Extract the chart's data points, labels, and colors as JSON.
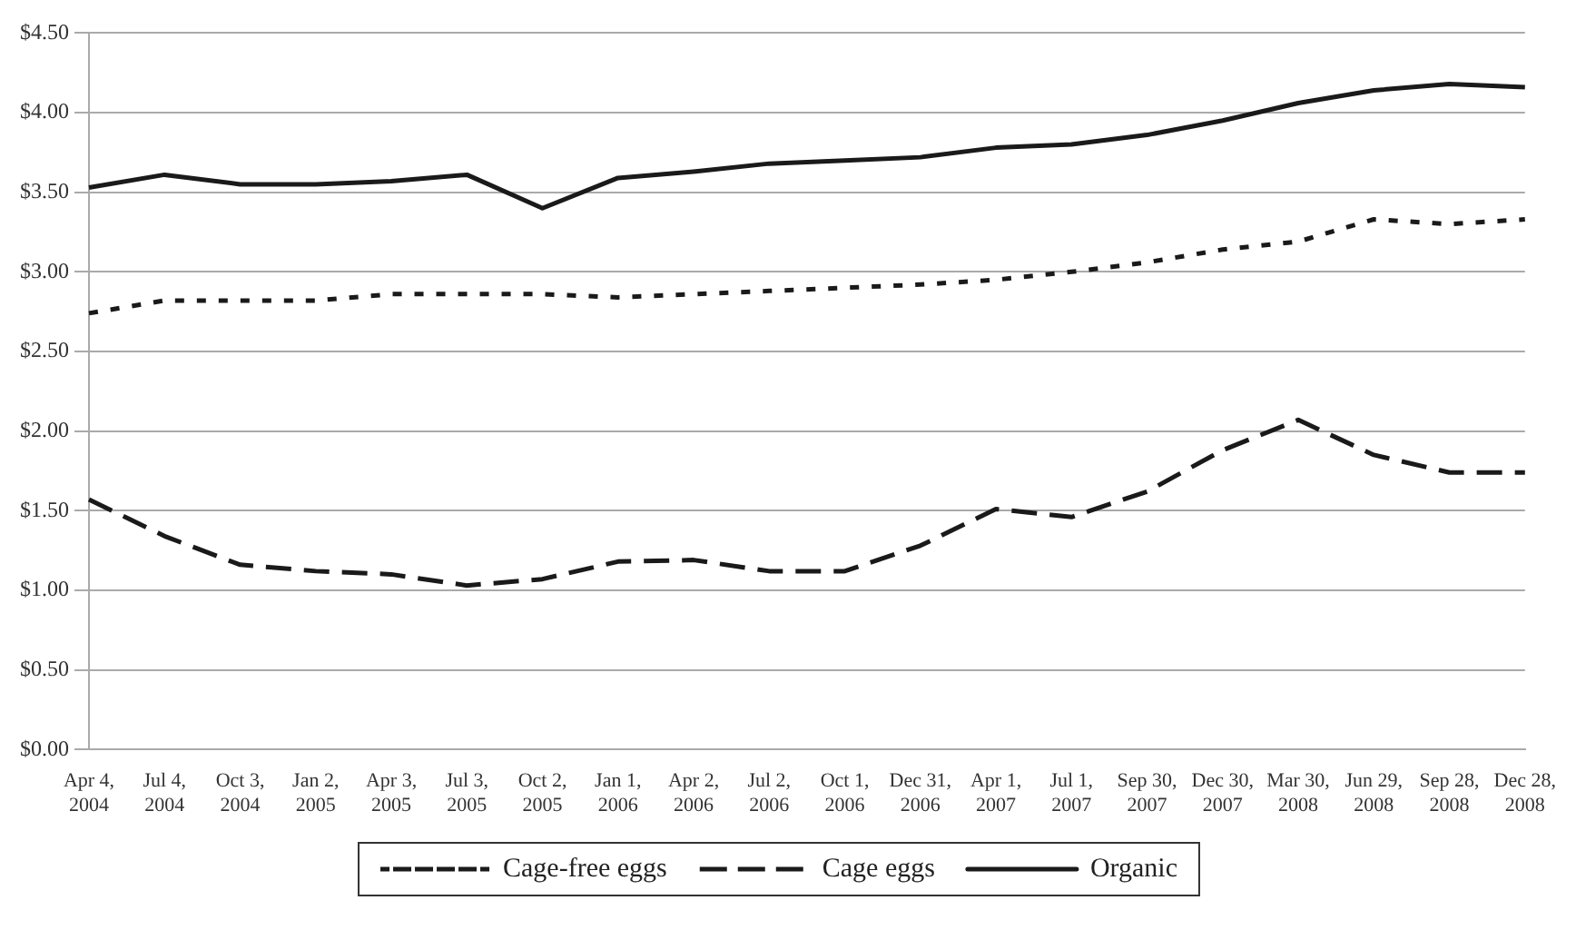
{
  "chart_data": {
    "type": "line",
    "categories": [
      "Apr 4, 2004",
      "Jul 4, 2004",
      "Oct 3, 2004",
      "Jan 2, 2005",
      "Apr 3, 2005",
      "Jul 3, 2005",
      "Oct 2, 2005",
      "Jan 1, 2006",
      "Apr 2, 2006",
      "Jul 2, 2006",
      "Oct 1, 2006",
      "Dec 31, 2006",
      "Apr 1, 2007",
      "Jul 1, 2007",
      "Sep 30, 2007",
      "Dec 30, 2007",
      "Mar 30, 2008",
      "Jun 29, 2008",
      "Sep 28, 2008",
      "Dec 28, 2008"
    ],
    "series": [
      {
        "name": "Cage-free eggs",
        "color": "#1a1a1a",
        "line_style": "dotted",
        "values": [
          2.74,
          2.82,
          2.82,
          2.82,
          2.86,
          2.86,
          2.86,
          2.84,
          2.86,
          2.88,
          2.9,
          2.92,
          2.95,
          3.0,
          3.06,
          3.14,
          3.19,
          3.33,
          3.3,
          3.33
        ]
      },
      {
        "name": "Cage eggs",
        "color": "#1a1a1a",
        "line_style": "dashed",
        "values": [
          1.57,
          1.34,
          1.16,
          1.12,
          1.1,
          1.03,
          1.07,
          1.18,
          1.19,
          1.12,
          1.12,
          1.28,
          1.51,
          1.46,
          1.62,
          1.88,
          2.07,
          1.85,
          1.74,
          1.74
        ]
      },
      {
        "name": "Organic",
        "color": "#1a1a1a",
        "line_style": "solid",
        "values": [
          3.53,
          3.61,
          3.55,
          3.55,
          3.57,
          3.61,
          3.4,
          3.59,
          3.63,
          3.68,
          3.7,
          3.72,
          3.78,
          3.8,
          3.86,
          3.95,
          4.06,
          4.14,
          4.18,
          4.16
        ]
      }
    ],
    "ylim": [
      0,
      4.5
    ],
    "yticks": [
      {
        "value": 0,
        "label": "$0.00"
      },
      {
        "value": 0.5,
        "label": "$0.50"
      },
      {
        "value": 1,
        "label": "$1.00"
      },
      {
        "value": 1.5,
        "label": "$1.50"
      },
      {
        "value": 2,
        "label": "$2.00"
      },
      {
        "value": 2.5,
        "label": "$2.50"
      },
      {
        "value": 3,
        "label": "$3.00"
      },
      {
        "value": 3.5,
        "label": "$3.50"
      },
      {
        "value": 4,
        "label": "$4.00"
      },
      {
        "value": 4.5,
        "label": "$4.50"
      }
    ],
    "grid": "y",
    "legend": "bottom",
    "marker": "none"
  }
}
